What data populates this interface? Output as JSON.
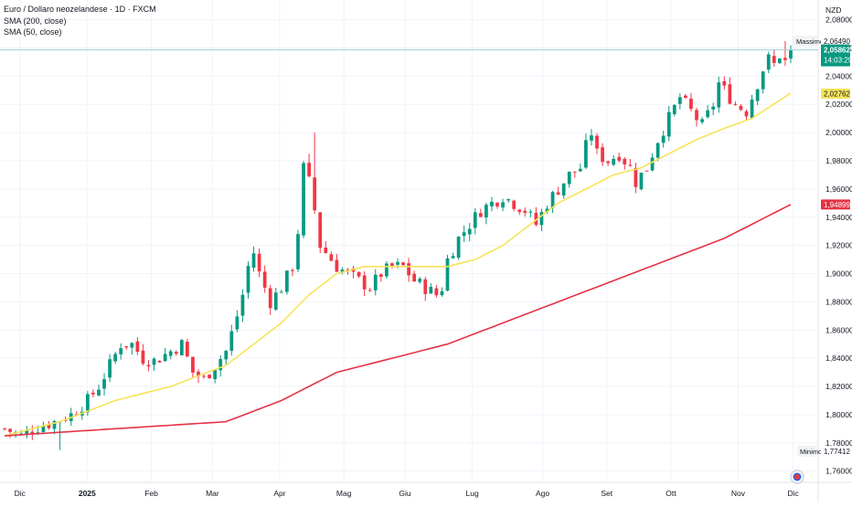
{
  "legend": {
    "symbol": "Euro / Dollaro neozelandese · 1D · FXCM",
    "sma200": "SMA (200, close)",
    "sma50": "SMA (50, close)"
  },
  "colors": {
    "up": "#089981",
    "down": "#f23645",
    "sma50": "#f7e359",
    "sma200": "#e53244",
    "grid": "#f0f3fa",
    "text": "#131722",
    "last_line": "#9ccfd8"
  },
  "chart_data": {
    "type": "candlestick",
    "currency_label": "NZD",
    "x_tick_labels": [
      "Dic",
      "2025",
      "Feb",
      "Mar",
      "Apr",
      "Mag",
      "Giu",
      "Lug",
      "Ago",
      "Set",
      "Ott",
      "Nov",
      "Dic"
    ],
    "y_tick_labels": [
      "2,08000",
      "2,06000",
      "2,04000",
      "2,02000",
      "2,00000",
      "1,98000",
      "1,96000",
      "1,94000",
      "1,92000",
      "1,90000",
      "1,88000",
      "1,86000",
      "1,84000",
      "1,82000",
      "1,80000",
      "1,78000",
      "1,76000"
    ],
    "ylim": [
      1.752,
      2.094
    ],
    "markers": {
      "high_label": "Massimo",
      "high_value": "2,06490",
      "low_label": "Minimo",
      "low_value": "1,77412",
      "last_value": "2,05862",
      "countdown": "14:03:29",
      "sma50_value": "2,02762",
      "sma200_value": "1,94899"
    },
    "close_path": [
      [
        0,
        1.79
      ],
      [
        3,
        1.785
      ],
      [
        5,
        1.79
      ],
      [
        9,
        1.795
      ],
      [
        12,
        1.8
      ],
      [
        15,
        1.81
      ],
      [
        17,
        1.82
      ],
      [
        19,
        1.835
      ],
      [
        21,
        1.85
      ],
      [
        23,
        1.85
      ],
      [
        25,
        1.84
      ],
      [
        27,
        1.838
      ],
      [
        30,
        1.845
      ],
      [
        32,
        1.85
      ],
      [
        34,
        1.83
      ],
      [
        36,
        1.825
      ],
      [
        38,
        1.835
      ],
      [
        40,
        1.845
      ],
      [
        42,
        1.87
      ],
      [
        43,
        1.885
      ],
      [
        44,
        1.905
      ],
      [
        45,
        1.915
      ],
      [
        46,
        1.9
      ],
      [
        48,
        1.88
      ],
      [
        50,
        1.89
      ],
      [
        52,
        1.905
      ],
      [
        53,
        1.93
      ],
      [
        54,
        1.975
      ],
      [
        55,
        1.965
      ],
      [
        56,
        1.945
      ],
      [
        57,
        1.92
      ],
      [
        58,
        1.915
      ],
      [
        60,
        1.905
      ],
      [
        62,
        1.9
      ],
      [
        64,
        1.895
      ],
      [
        66,
        1.89
      ],
      [
        68,
        1.9
      ],
      [
        70,
        1.905
      ],
      [
        72,
        1.905
      ],
      [
        74,
        1.895
      ],
      [
        76,
        1.89
      ],
      [
        78,
        1.885
      ],
      [
        79,
        1.89
      ],
      [
        80,
        1.91
      ],
      [
        82,
        1.925
      ],
      [
        84,
        1.935
      ],
      [
        86,
        1.945
      ],
      [
        88,
        1.95
      ],
      [
        90,
        1.955
      ],
      [
        92,
        1.95
      ],
      [
        94,
        1.945
      ],
      [
        96,
        1.935
      ],
      [
        98,
        1.95
      ],
      [
        100,
        1.96
      ],
      [
        102,
        1.97
      ],
      [
        104,
        1.975
      ],
      [
        105,
        1.99
      ],
      [
        106,
        2.0
      ],
      [
        107,
        1.985
      ],
      [
        109,
        1.98
      ],
      [
        111,
        1.985
      ],
      [
        113,
        1.975
      ],
      [
        114,
        1.965
      ],
      [
        116,
        1.975
      ],
      [
        118,
        1.995
      ],
      [
        120,
        2.01
      ],
      [
        122,
        2.025
      ],
      [
        124,
        2.015
      ],
      [
        126,
        2.005
      ],
      [
        128,
        2.02
      ],
      [
        129,
        2.035
      ],
      [
        130,
        2.03
      ],
      [
        132,
        2.02
      ],
      [
        134,
        2.015
      ],
      [
        135,
        2.025
      ],
      [
        136,
        2.035
      ],
      [
        137,
        2.045
      ],
      [
        138,
        2.052
      ],
      [
        139,
        2.048
      ],
      [
        140,
        2.055
      ],
      [
        141,
        2.05
      ],
      [
        142,
        2.058
      ]
    ],
    "series": [
      {
        "name": "SMA (50, close)",
        "values": [
          [
            0,
            1.785
          ],
          [
            10,
            1.795
          ],
          [
            20,
            1.81
          ],
          [
            30,
            1.82
          ],
          [
            40,
            1.835
          ],
          [
            45,
            1.85
          ],
          [
            50,
            1.865
          ],
          [
            55,
            1.885
          ],
          [
            60,
            1.9
          ],
          [
            65,
            1.905
          ],
          [
            70,
            1.905
          ],
          [
            75,
            1.905
          ],
          [
            80,
            1.905
          ],
          [
            85,
            1.91
          ],
          [
            90,
            1.92
          ],
          [
            95,
            1.935
          ],
          [
            100,
            1.95
          ],
          [
            105,
            1.96
          ],
          [
            110,
            1.97
          ],
          [
            115,
            1.975
          ],
          [
            120,
            1.985
          ],
          [
            125,
            1.995
          ],
          [
            130,
            2.003
          ],
          [
            135,
            2.01
          ],
          [
            142,
            2.028
          ]
        ]
      },
      {
        "name": "SMA (200, close)",
        "values": [
          [
            0,
            1.785
          ],
          [
            20,
            1.79
          ],
          [
            40,
            1.795
          ],
          [
            50,
            1.81
          ],
          [
            60,
            1.83
          ],
          [
            70,
            1.84
          ],
          [
            80,
            1.85
          ],
          [
            90,
            1.865
          ],
          [
            100,
            1.88
          ],
          [
            110,
            1.895
          ],
          [
            120,
            1.91
          ],
          [
            130,
            1.925
          ],
          [
            142,
            1.949
          ]
        ]
      }
    ]
  }
}
